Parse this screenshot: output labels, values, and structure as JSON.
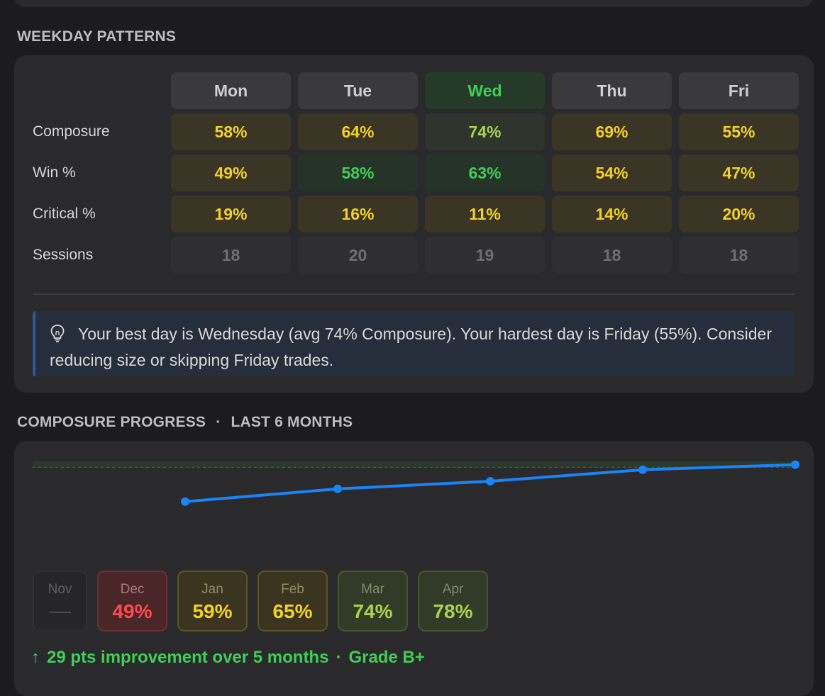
{
  "weekday": {
    "title": "WEEKDAY PATTERNS",
    "days": [
      "Mon",
      "Tue",
      "Wed",
      "Thu",
      "Fri"
    ],
    "best_day_index": 2,
    "rows": [
      {
        "label": "Composure",
        "values": [
          "58%",
          "64%",
          "74%",
          "69%",
          "55%"
        ],
        "styles": [
          "yellow",
          "yellow",
          "yellowgreen",
          "yellow",
          "yellow"
        ]
      },
      {
        "label": "Win %",
        "values": [
          "49%",
          "58%",
          "63%",
          "54%",
          "47%"
        ],
        "styles": [
          "yellow",
          "green",
          "green",
          "yellow",
          "yellow"
        ]
      },
      {
        "label": "Critical %",
        "values": [
          "19%",
          "16%",
          "11%",
          "14%",
          "20%"
        ],
        "styles": [
          "yellow",
          "yellow",
          "yellow",
          "yellow",
          "yellow"
        ]
      },
      {
        "label": "Sessions",
        "values": [
          "18",
          "20",
          "19",
          "18",
          "18"
        ],
        "styles": [
          "muted",
          "muted",
          "muted",
          "muted",
          "muted"
        ]
      }
    ],
    "insight_icon": "lightbulb-icon",
    "insight_text": "Your best day is Wednesday (avg 74% Composure). Your hardest day is Friday (55%). Consider reducing size or skipping Friday trades."
  },
  "progress": {
    "title": "COMPOSURE PROGRESS",
    "separator": "·",
    "subtitle": "LAST 6 MONTHS",
    "months": [
      {
        "name": "Nov",
        "value": "",
        "style": "empty"
      },
      {
        "name": "Dec",
        "value": "49%",
        "style": "red"
      },
      {
        "name": "Jan",
        "value": "59%",
        "style": "yellow"
      },
      {
        "name": "Feb",
        "value": "65%",
        "style": "yellow"
      },
      {
        "name": "Mar",
        "value": "74%",
        "style": "green"
      },
      {
        "name": "Apr",
        "value": "78%",
        "style": "green"
      }
    ],
    "summary_arrow": "↑",
    "summary_text": "29 pts improvement over 5 months",
    "summary_sep": "·",
    "grade": "Grade B+",
    "colors": {
      "line": "#1a84f5",
      "good": "#3ecf55",
      "warn": "#f5d21e",
      "bad": "#ff4a4a"
    }
  },
  "chart_data": {
    "type": "line",
    "categories": [
      "Dec",
      "Jan",
      "Feb",
      "Mar",
      "Apr"
    ],
    "values": [
      49,
      59,
      65,
      74,
      78
    ],
    "ylim": [
      30,
      80
    ],
    "target_band": [
      76,
      80
    ]
  }
}
